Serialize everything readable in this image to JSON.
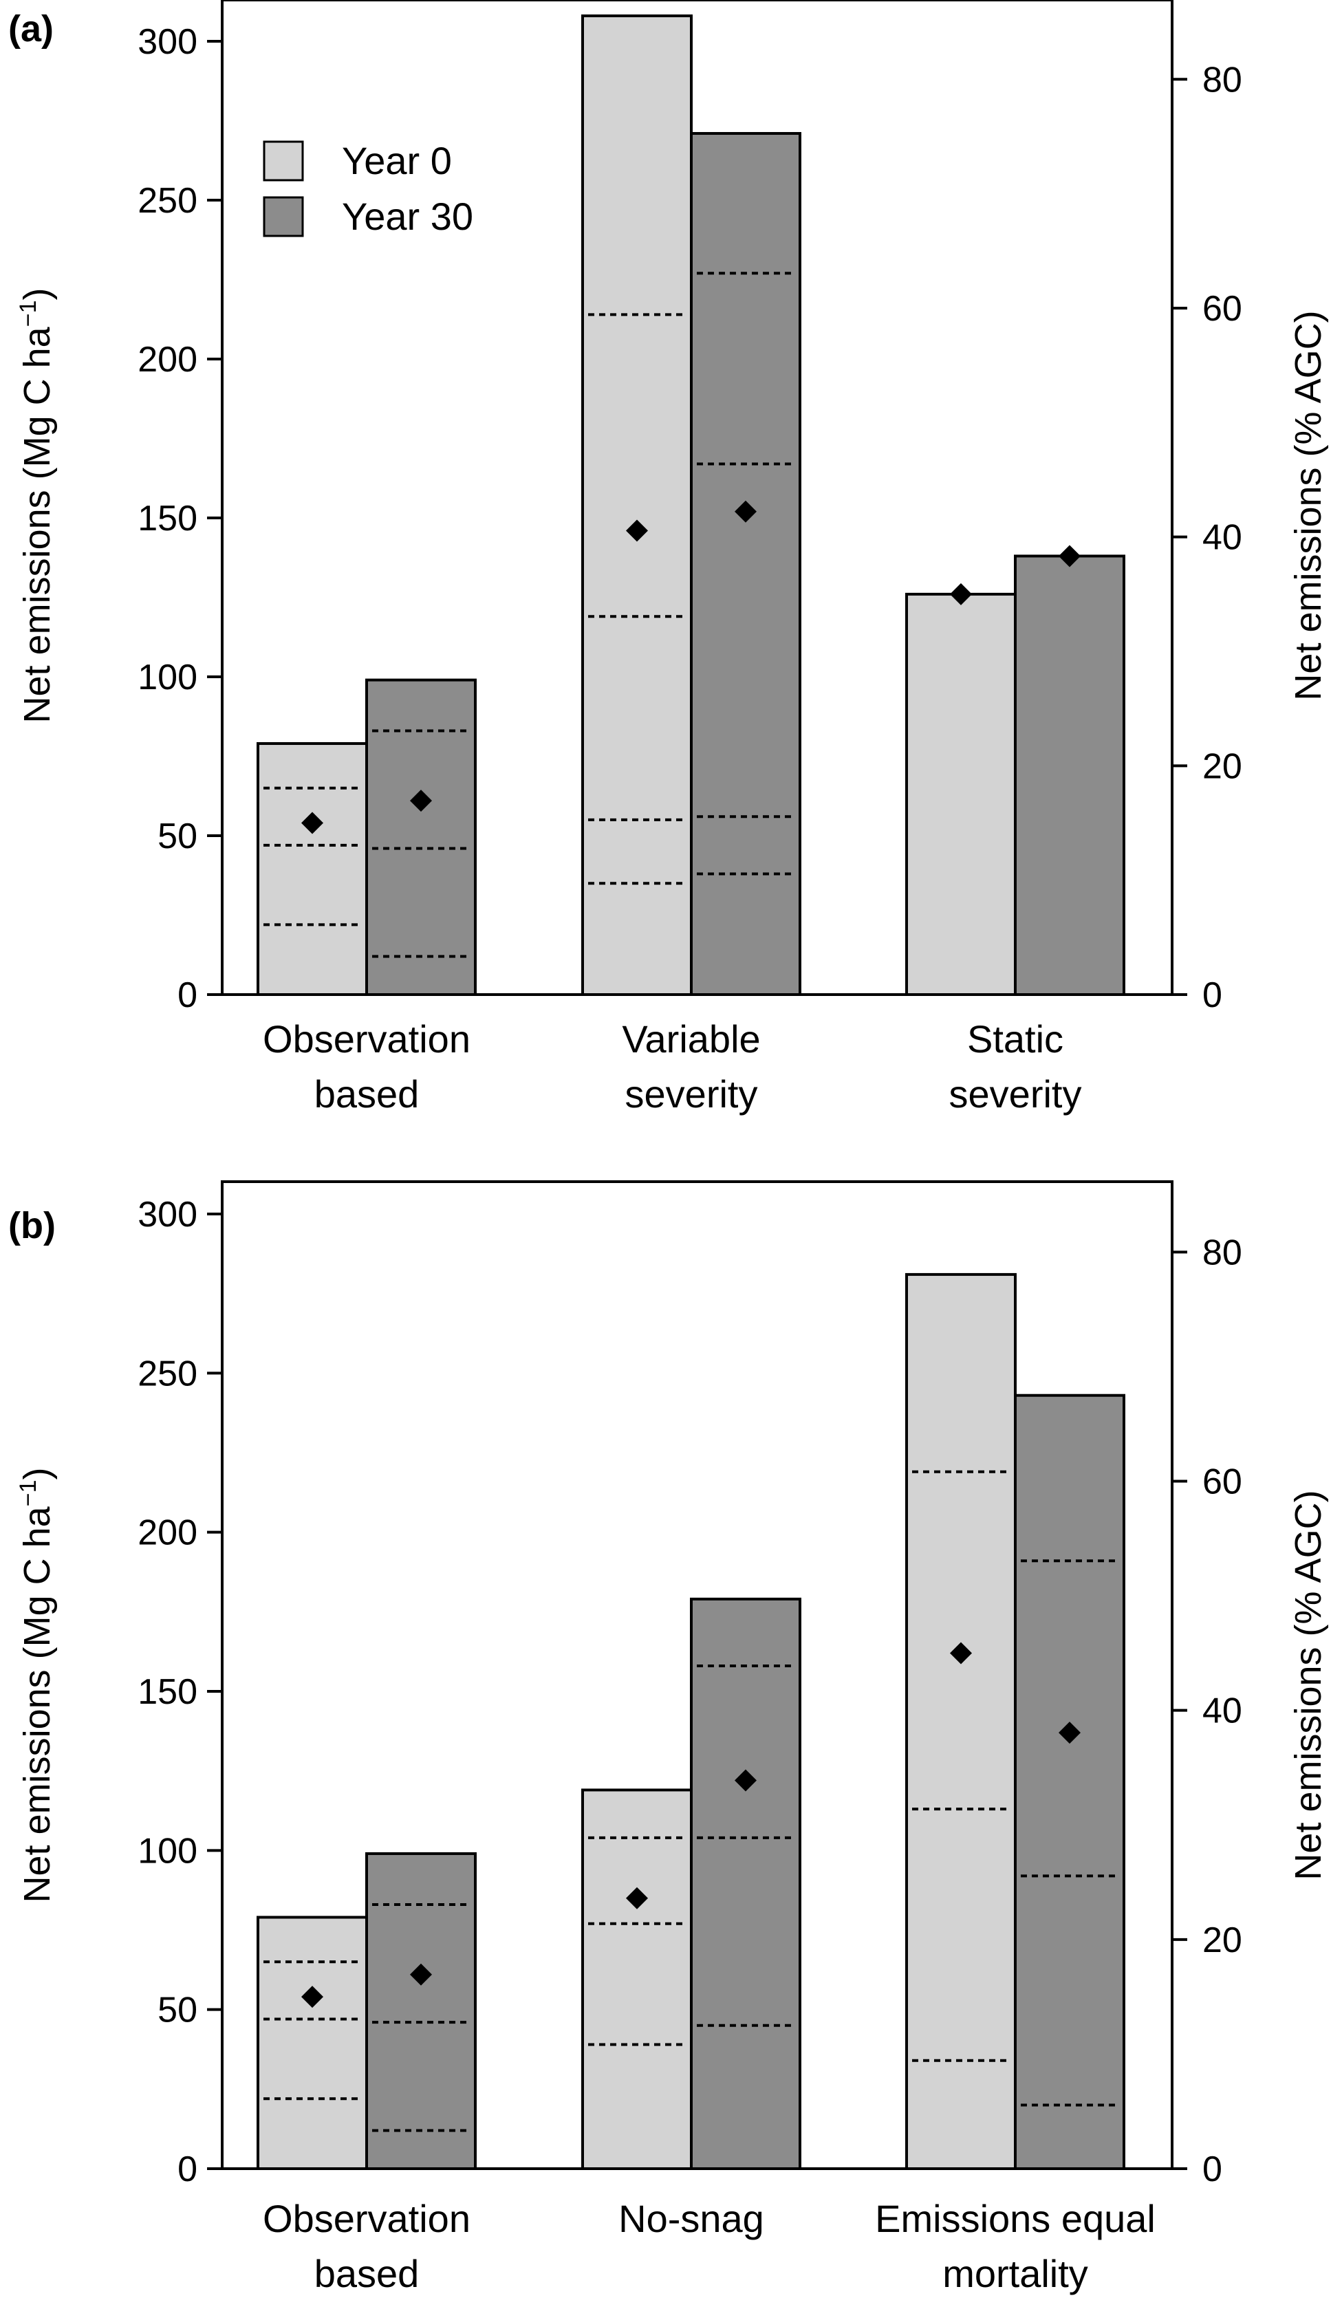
{
  "colors": {
    "year0": "#d3d3d3",
    "year30": "#8c8c8c",
    "outline": "#000000",
    "dotted": "#000000",
    "marker": "#000000"
  },
  "chart_data": [
    {
      "type": "bar",
      "panel_label": "(a)",
      "ylabel_left": "Net emissions (Mg C ha",
      "ylabel_left_sup": "−1",
      "ylabel_left_close": ")",
      "ylabel_right": "Net emissions (% AGC)",
      "ylim": [
        0,
        310
      ],
      "yticks_left": [
        0,
        50,
        100,
        150,
        200,
        250,
        300
      ],
      "ylim_right": [
        0,
        86.1
      ],
      "yticks_right": [
        0,
        20,
        40,
        60,
        80
      ],
      "legend": {
        "placement": "top-left",
        "entries": [
          "Year 0",
          "Year 30"
        ]
      },
      "categories": [
        {
          "line1": "Observation",
          "line2": "based"
        },
        {
          "line1": "Variable",
          "line2": "severity"
        },
        {
          "line1": "Static",
          "line2": "severity"
        }
      ],
      "series": [
        {
          "name": "Year 0",
          "values": [
            79,
            308,
            126
          ],
          "markers": [
            54,
            146,
            126
          ],
          "dotted_lines": [
            [
              22,
              47,
              65
            ],
            [
              35,
              55,
              119,
              214
            ],
            []
          ]
        },
        {
          "name": "Year 30",
          "values": [
            99,
            271,
            138
          ],
          "markers": [
            61,
            152,
            138
          ],
          "dotted_lines": [
            [
              12,
              46,
              83
            ],
            [
              38,
              56,
              167,
              227
            ],
            []
          ]
        }
      ]
    },
    {
      "type": "bar",
      "panel_label": "(b)",
      "ylabel_left": "Net emissions (Mg C ha",
      "ylabel_left_sup": "−1",
      "ylabel_left_close": ")",
      "ylabel_right": "Net emissions (% AGC)",
      "ylim": [
        0,
        310
      ],
      "yticks_left": [
        0,
        50,
        100,
        150,
        200,
        250,
        300
      ],
      "ylim_right": [
        0,
        86.1
      ],
      "yticks_right": [
        0,
        20,
        40,
        60,
        80
      ],
      "categories": [
        {
          "line1": "Observation",
          "line2": "based"
        },
        {
          "line1": "No-snag",
          "line2": ""
        },
        {
          "line1": "Emissions equal",
          "line2": "mortality"
        }
      ],
      "series": [
        {
          "name": "Year 0",
          "values": [
            79,
            119,
            281
          ],
          "markers": [
            54,
            85,
            162
          ],
          "dotted_lines": [
            [
              22,
              47,
              65
            ],
            [
              39,
              77,
              104
            ],
            [
              34,
              113,
              219
            ]
          ]
        },
        {
          "name": "Year 30",
          "values": [
            99,
            179,
            243
          ],
          "markers": [
            61,
            122,
            137
          ],
          "dotted_lines": [
            [
              12,
              46,
              83
            ],
            [
              45,
              104,
              158
            ],
            [
              20,
              92,
              191
            ]
          ]
        }
      ]
    }
  ]
}
